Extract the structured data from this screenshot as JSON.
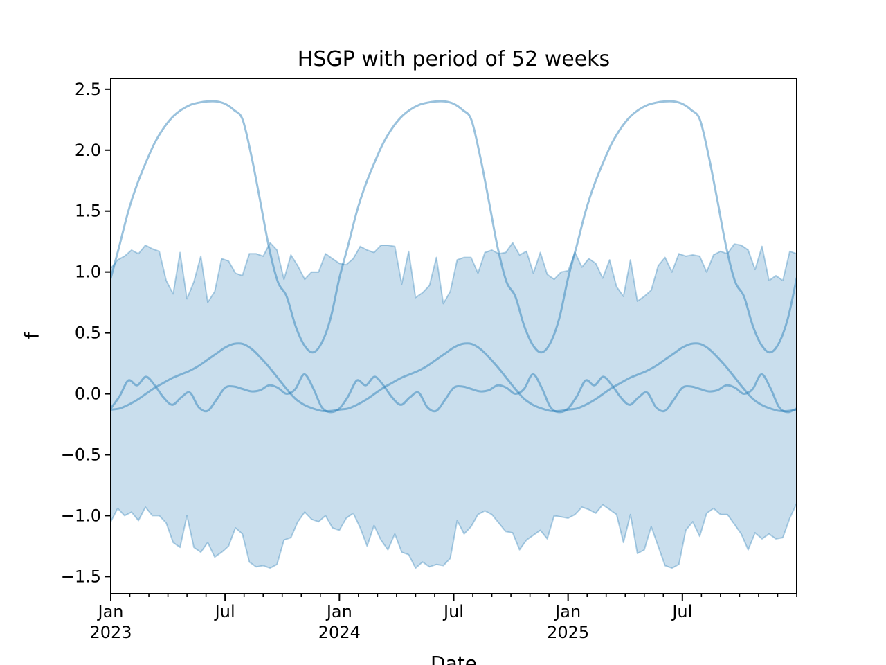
{
  "figure": {
    "title": "HSGP with period of 52 weeks",
    "xlabel": "Date",
    "ylabel": "f"
  },
  "colors": {
    "base_blue": "#1f77b4",
    "band_fill_alpha": 0.24,
    "band_edge_alpha": 0.34,
    "line_alpha": 0.45,
    "axis": "#000000",
    "text": "#000000",
    "background": "#ffffff"
  },
  "chart_data": {
    "type": "line",
    "title": "HSGP with period of 52 weeks",
    "xlabel": "Date",
    "ylabel": "f",
    "x_unit": "weeks since Jan 2023",
    "x_range_weeks": [
      0,
      156
    ],
    "ylim": [
      -1.64,
      2.59
    ],
    "grid": false,
    "legend_position": "none",
    "yticks": {
      "values": [
        2.5,
        2.0,
        1.5,
        1.0,
        0.5,
        0.0,
        -0.5,
        -1.0,
        -1.5
      ],
      "labels": [
        "2.5",
        "2.0",
        "1.5",
        "1.0",
        "0.5",
        "0.0",
        "−0.5",
        "−1.0",
        "−1.5"
      ]
    },
    "xticks_major": [
      {
        "week": 0,
        "month": "Jan",
        "year": "2023"
      },
      {
        "week": 26,
        "month": "Jul",
        "year": ""
      },
      {
        "week": 52,
        "month": "Jan",
        "year": "2024"
      },
      {
        "week": 78,
        "month": "Jul",
        "year": ""
      },
      {
        "week": 104,
        "month": "Jan",
        "year": "2025"
      },
      {
        "week": 130,
        "month": "Jul",
        "year": ""
      }
    ],
    "xticks_minor_month_count": 36,
    "band": {
      "name": "sample-uncertainty-band",
      "n_points": 100,
      "x_even_spacing_over_range": true,
      "upper": [
        1.03,
        1.1,
        1.13,
        1.18,
        1.15,
        1.22,
        1.19,
        1.17,
        0.93,
        0.82,
        1.16,
        0.78,
        0.92,
        1.13,
        0.75,
        0.84,
        1.11,
        1.09,
        0.99,
        0.97,
        1.15,
        1.15,
        1.13,
        1.24,
        1.18,
        0.94,
        1.14,
        1.05,
        0.94,
        1.0,
        1.0,
        1.15,
        1.11,
        1.07,
        1.06,
        1.11,
        1.21,
        1.18,
        1.16,
        1.22,
        1.22,
        1.21,
        0.9,
        1.17,
        0.79,
        0.83,
        0.89,
        1.12,
        0.74,
        0.84,
        1.1,
        1.12,
        1.12,
        0.99,
        1.16,
        1.18,
        1.15,
        1.16,
        1.24,
        1.14,
        1.17,
        0.99,
        1.16,
        0.98,
        0.94,
        1.0,
        1.01,
        1.16,
        1.04,
        1.11,
        1.07,
        0.95,
        1.1,
        0.88,
        0.8,
        1.1,
        0.76,
        0.8,
        0.85,
        1.05,
        1.12,
        1.0,
        1.15,
        1.13,
        1.14,
        1.13,
        1.0,
        1.14,
        1.17,
        1.15,
        1.23,
        1.22,
        1.18,
        1.02,
        1.21,
        0.93,
        0.97,
        0.93,
        1.17,
        1.15
      ],
      "lower": [
        -1.05,
        -0.94,
        -1.0,
        -0.97,
        -1.04,
        -0.93,
        -1.0,
        -1.0,
        -1.06,
        -1.22,
        -1.26,
        -1.0,
        -1.26,
        -1.3,
        -1.22,
        -1.34,
        -1.3,
        -1.25,
        -1.1,
        -1.15,
        -1.38,
        -1.42,
        -1.41,
        -1.43,
        -1.4,
        -1.2,
        -1.18,
        -1.05,
        -0.97,
        -1.03,
        -1.05,
        -1.0,
        -1.1,
        -1.12,
        -1.02,
        -0.98,
        -1.1,
        -1.25,
        -1.08,
        -1.2,
        -1.28,
        -1.15,
        -1.3,
        -1.32,
        -1.43,
        -1.38,
        -1.42,
        -1.4,
        -1.41,
        -1.35,
        -1.04,
        -1.15,
        -1.09,
        -0.99,
        -0.96,
        -0.99,
        -1.06,
        -1.13,
        -1.14,
        -1.28,
        -1.2,
        -1.16,
        -1.12,
        -1.19,
        -1.0,
        -1.01,
        -1.02,
        -0.99,
        -0.93,
        -0.95,
        -0.98,
        -0.91,
        -0.95,
        -0.99,
        -1.22,
        -0.99,
        -1.31,
        -1.28,
        -1.09,
        -1.25,
        -1.41,
        -1.43,
        -1.4,
        -1.12,
        -1.05,
        -1.17,
        -0.98,
        -0.94,
        -0.99,
        -0.99,
        -1.07,
        -1.15,
        -1.28,
        -1.14,
        -1.19,
        -1.15,
        -1.19,
        -1.18,
        -1.02,
        -0.9
      ]
    },
    "series": [
      {
        "name": "sample_1_large_amplitude",
        "period_weeks": 52,
        "t_weeks": [
          0,
          2,
          4,
          6,
          8,
          10,
          12,
          14,
          16,
          18,
          20,
          22,
          24,
          26,
          28,
          30,
          32,
          34,
          36,
          38,
          40,
          42,
          44,
          46,
          48,
          50,
          52
        ],
        "values": [
          0.95,
          1.22,
          1.5,
          1.72,
          1.9,
          2.06,
          2.18,
          2.27,
          2.33,
          2.37,
          2.39,
          2.4,
          2.4,
          2.38,
          2.33,
          2.25,
          1.95,
          1.58,
          1.2,
          0.92,
          0.8,
          0.56,
          0.4,
          0.34,
          0.42,
          0.62,
          0.95
        ]
      },
      {
        "name": "sample_2_medium_smooth",
        "period_weeks": 52,
        "t_weeks": [
          0,
          2,
          4,
          6,
          8,
          10,
          12,
          14,
          16,
          18,
          20,
          22,
          24,
          26,
          28,
          30,
          32,
          34,
          36,
          38,
          40,
          42,
          44,
          46,
          48,
          50,
          52
        ],
        "values": [
          -0.13,
          -0.12,
          -0.09,
          -0.05,
          0.0,
          0.05,
          0.09,
          0.13,
          0.16,
          0.19,
          0.23,
          0.28,
          0.33,
          0.38,
          0.41,
          0.41,
          0.37,
          0.3,
          0.22,
          0.13,
          0.04,
          -0.04,
          -0.09,
          -0.12,
          -0.14,
          -0.14,
          -0.13
        ]
      },
      {
        "name": "sample_3_small_wiggly",
        "period_weeks": 52,
        "t_weeks": [
          0,
          2,
          4,
          6,
          8,
          10,
          12,
          14,
          16,
          18,
          20,
          22,
          24,
          26,
          28,
          30,
          32,
          34,
          36,
          38,
          40,
          42,
          44,
          46,
          48,
          50,
          52
        ],
        "values": [
          -0.12,
          -0.02,
          0.11,
          0.07,
          0.14,
          0.07,
          -0.03,
          -0.09,
          -0.03,
          0.01,
          -0.11,
          -0.14,
          -0.05,
          0.05,
          0.06,
          0.04,
          0.02,
          0.03,
          0.07,
          0.05,
          0.0,
          0.04,
          0.16,
          0.05,
          -0.11,
          -0.15,
          -0.12
        ]
      }
    ]
  }
}
